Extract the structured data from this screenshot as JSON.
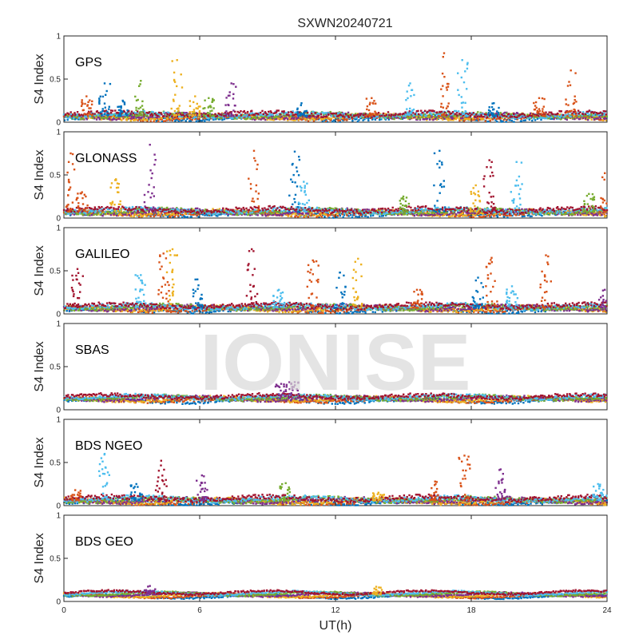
{
  "chart_data": {
    "type": "scatter",
    "title": "SXWN20240721",
    "xlabel": "UT(h)",
    "ylabel": "S4 Index",
    "xlim": [
      0,
      24
    ],
    "ylim": [
      0,
      1
    ],
    "xticks": [
      0,
      6,
      12,
      18,
      24
    ],
    "yticks": [
      0,
      0.5,
      1
    ],
    "ytick_labels": [
      "0",
      "0.5",
      "1"
    ],
    "grid": false,
    "watermark": "IONISE",
    "series_colors": [
      "#0072BD",
      "#D95319",
      "#EDB120",
      "#7E2F8E",
      "#77AC30",
      "#4DBEEE",
      "#A2142F"
    ],
    "panels": [
      {
        "label": "GPS",
        "baseline": 0.07,
        "noise": 0.05,
        "bursts": [
          {
            "x": 1.0,
            "peak": 0.3,
            "color": 1
          },
          {
            "x": 1.8,
            "peak": 0.45,
            "color": 0
          },
          {
            "x": 2.6,
            "peak": 0.25,
            "color": 0
          },
          {
            "x": 3.4,
            "peak": 0.48,
            "color": 4
          },
          {
            "x": 5.0,
            "peak": 0.72,
            "color": 2
          },
          {
            "x": 5.8,
            "peak": 0.3,
            "color": 2
          },
          {
            "x": 6.4,
            "peak": 0.28,
            "color": 4
          },
          {
            "x": 7.4,
            "peak": 0.45,
            "color": 3
          },
          {
            "x": 10.5,
            "peak": 0.22,
            "color": 0
          },
          {
            "x": 13.6,
            "peak": 0.28,
            "color": 1
          },
          {
            "x": 15.3,
            "peak": 0.45,
            "color": 5
          },
          {
            "x": 16.8,
            "peak": 0.8,
            "color": 1
          },
          {
            "x": 17.6,
            "peak": 0.72,
            "color": 5
          },
          {
            "x": 19.0,
            "peak": 0.22,
            "color": 0
          },
          {
            "x": 21.0,
            "peak": 0.28,
            "color": 1
          },
          {
            "x": 22.4,
            "peak": 0.6,
            "color": 1
          }
        ]
      },
      {
        "label": "GLONASS",
        "baseline": 0.07,
        "noise": 0.05,
        "bursts": [
          {
            "x": 0.3,
            "peak": 0.75,
            "color": 1
          },
          {
            "x": 0.8,
            "peak": 0.3,
            "color": 1
          },
          {
            "x": 2.3,
            "peak": 0.45,
            "color": 2
          },
          {
            "x": 3.8,
            "peak": 0.85,
            "color": 3
          },
          {
            "x": 8.4,
            "peak": 0.78,
            "color": 1
          },
          {
            "x": 10.2,
            "peak": 0.77,
            "color": 0
          },
          {
            "x": 10.6,
            "peak": 0.42,
            "color": 5
          },
          {
            "x": 15.0,
            "peak": 0.25,
            "color": 4
          },
          {
            "x": 16.6,
            "peak": 0.78,
            "color": 0
          },
          {
            "x": 18.2,
            "peak": 0.38,
            "color": 2
          },
          {
            "x": 18.8,
            "peak": 0.67,
            "color": 6
          },
          {
            "x": 20.0,
            "peak": 0.65,
            "color": 5
          },
          {
            "x": 23.2,
            "peak": 0.28,
            "color": 4
          },
          {
            "x": 23.9,
            "peak": 0.52,
            "color": 1
          }
        ]
      },
      {
        "label": "GALILEO",
        "baseline": 0.07,
        "noise": 0.05,
        "bursts": [
          {
            "x": 0.6,
            "peak": 0.52,
            "color": 6
          },
          {
            "x": 3.4,
            "peak": 0.45,
            "color": 5
          },
          {
            "x": 4.4,
            "peak": 0.7,
            "color": 1
          },
          {
            "x": 4.8,
            "peak": 0.75,
            "color": 2
          },
          {
            "x": 5.9,
            "peak": 0.4,
            "color": 0
          },
          {
            "x": 8.3,
            "peak": 0.75,
            "color": 6
          },
          {
            "x": 9.5,
            "peak": 0.28,
            "color": 5
          },
          {
            "x": 11.0,
            "peak": 0.62,
            "color": 1
          },
          {
            "x": 12.2,
            "peak": 0.48,
            "color": 0
          },
          {
            "x": 13.0,
            "peak": 0.64,
            "color": 2
          },
          {
            "x": 15.6,
            "peak": 0.28,
            "color": 1
          },
          {
            "x": 18.3,
            "peak": 0.42,
            "color": 0
          },
          {
            "x": 18.9,
            "peak": 0.65,
            "color": 1
          },
          {
            "x": 19.8,
            "peak": 0.32,
            "color": 5
          },
          {
            "x": 21.3,
            "peak": 0.68,
            "color": 1
          },
          {
            "x": 23.9,
            "peak": 0.28,
            "color": 3
          }
        ]
      },
      {
        "label": "SBAS",
        "baseline": 0.13,
        "noise": 0.04,
        "bursts": [
          {
            "x": 9.6,
            "peak": 0.3,
            "color": 3
          },
          {
            "x": 10.2,
            "peak": 0.32,
            "color": 3
          }
        ]
      },
      {
        "label": "BDS NGEO",
        "baseline": 0.06,
        "noise": 0.05,
        "bursts": [
          {
            "x": 0.5,
            "peak": 0.18,
            "color": 1
          },
          {
            "x": 1.8,
            "peak": 0.6,
            "color": 5
          },
          {
            "x": 3.2,
            "peak": 0.25,
            "color": 0
          },
          {
            "x": 4.3,
            "peak": 0.52,
            "color": 6
          },
          {
            "x": 6.1,
            "peak": 0.35,
            "color": 3
          },
          {
            "x": 9.8,
            "peak": 0.26,
            "color": 4
          },
          {
            "x": 13.9,
            "peak": 0.15,
            "color": 2
          },
          {
            "x": 16.4,
            "peak": 0.28,
            "color": 1
          },
          {
            "x": 17.7,
            "peak": 0.58,
            "color": 1
          },
          {
            "x": 19.3,
            "peak": 0.42,
            "color": 3
          },
          {
            "x": 23.6,
            "peak": 0.25,
            "color": 5
          }
        ]
      },
      {
        "label": "BDS GEO",
        "baseline": 0.08,
        "noise": 0.02,
        "bursts": [
          {
            "x": 3.8,
            "peak": 0.18,
            "color": 3
          },
          {
            "x": 13.8,
            "peak": 0.17,
            "color": 2
          }
        ]
      }
    ]
  }
}
